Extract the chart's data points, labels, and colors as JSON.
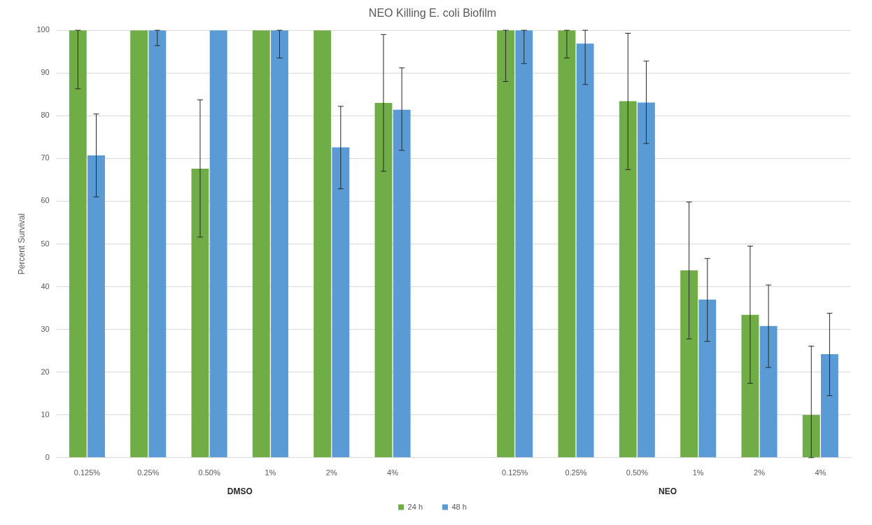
{
  "chart_data": {
    "type": "bar",
    "title": "NEO Killing E. coli Biofilm",
    "ylabel": "Percent Survival",
    "categories": [
      "0.125%",
      "0.25%",
      "0.50%",
      "1%",
      "2%",
      "4%",
      null,
      "0.125%",
      "0.25%",
      "0.50%",
      "1%",
      "2%",
      "4%"
    ],
    "series": [
      {
        "name": "24 h",
        "color": "#70ad47",
        "values": [
          100,
          100,
          67.6,
          100,
          100,
          83,
          null,
          100,
          100,
          83.4,
          43.8,
          33.4,
          10
        ],
        "errors": [
          [
            86.3,
            100
          ],
          null,
          [
            51.6,
            83.7
          ],
          null,
          null,
          [
            67,
            99
          ],
          null,
          [
            88,
            100
          ],
          [
            93.5,
            100
          ],
          [
            67.4,
            99.3
          ],
          [
            27.8,
            59.8
          ],
          [
            17.4,
            49.5
          ],
          [
            0,
            26.1
          ]
        ]
      },
      {
        "name": "48 h",
        "color": "#5b9bd5",
        "values": [
          70.7,
          100,
          100,
          100,
          72.6,
          81.4,
          null,
          100,
          96.9,
          83.1,
          37,
          30.8,
          24.2
        ],
        "errors": [
          [
            61,
            80.4
          ],
          [
            96.4,
            100
          ],
          null,
          [
            93.5,
            100
          ],
          [
            62.9,
            82.2
          ],
          [
            71.9,
            91.2
          ],
          null,
          [
            92.2,
            100
          ],
          [
            87.3,
            100
          ],
          [
            73.5,
            92.8
          ],
          [
            27.2,
            46.6
          ],
          [
            21.1,
            40.4
          ],
          [
            14.5,
            33.8
          ]
        ]
      }
    ],
    "annotations": [
      "DMSO",
      "NEO"
    ],
    "ylim": [
      0,
      100
    ],
    "yticks": [
      0,
      10,
      20,
      30,
      40,
      50,
      60,
      70,
      80,
      90,
      100
    ],
    "grid": "y",
    "legend": "bottom"
  }
}
